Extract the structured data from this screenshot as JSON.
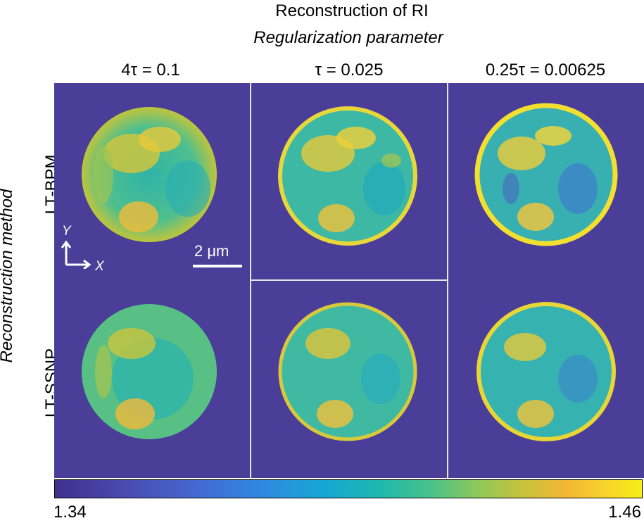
{
  "title": "Reconstruction of RI",
  "subtitle": "Regularization parameter",
  "columns": [
    "4τ = 0.1",
    "τ = 0.025",
    "0.25τ = 0.00625"
  ],
  "y_axis_label": "Reconstruction method",
  "rows": [
    "LT-BPM",
    "LT-SSNP"
  ],
  "scale_bar": "2 μm",
  "axes": {
    "y": "Y",
    "x": "X"
  },
  "colorbar": {
    "min": "1.34",
    "max": "1.46"
  },
  "colors": {
    "background": "#4a3e98",
    "low": "#3f2f8c",
    "mid": "#1cb8b0",
    "high": "#f7ee1a"
  }
}
